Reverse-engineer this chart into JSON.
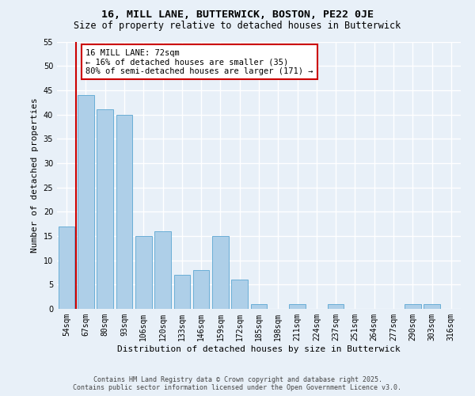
{
  "title": "16, MILL LANE, BUTTERWICK, BOSTON, PE22 0JE",
  "subtitle": "Size of property relative to detached houses in Butterwick",
  "xlabel": "Distribution of detached houses by size in Butterwick",
  "ylabel": "Number of detached properties",
  "bar_labels": [
    "54sqm",
    "67sqm",
    "80sqm",
    "93sqm",
    "106sqm",
    "120sqm",
    "133sqm",
    "146sqm",
    "159sqm",
    "172sqm",
    "185sqm",
    "198sqm",
    "211sqm",
    "224sqm",
    "237sqm",
    "251sqm",
    "264sqm",
    "277sqm",
    "290sqm",
    "303sqm",
    "316sqm"
  ],
  "bar_values": [
    17,
    44,
    41,
    40,
    15,
    16,
    7,
    8,
    15,
    6,
    1,
    0,
    1,
    0,
    1,
    0,
    0,
    0,
    1,
    1,
    0
  ],
  "bar_color": "#aecfe8",
  "bar_edge_color": "#6aaed6",
  "background_color": "#e8f0f8",
  "grid_color": "#ffffff",
  "ylim": [
    0,
    55
  ],
  "yticks": [
    0,
    5,
    10,
    15,
    20,
    25,
    30,
    35,
    40,
    45,
    50,
    55
  ],
  "vline_color": "#cc0000",
  "annotation_title": "16 MILL LANE: 72sqm",
  "annotation_line1": "← 16% of detached houses are smaller (35)",
  "annotation_line2": "80% of semi-detached houses are larger (171) →",
  "annotation_box_color": "#cc0000",
  "footer_line1": "Contains HM Land Registry data © Crown copyright and database right 2025.",
  "footer_line2": "Contains public sector information licensed under the Open Government Licence v3.0.",
  "title_fontsize": 9.5,
  "subtitle_fontsize": 8.5,
  "axis_label_fontsize": 8,
  "tick_fontsize": 7,
  "annotation_fontsize": 7.5,
  "footer_fontsize": 6
}
